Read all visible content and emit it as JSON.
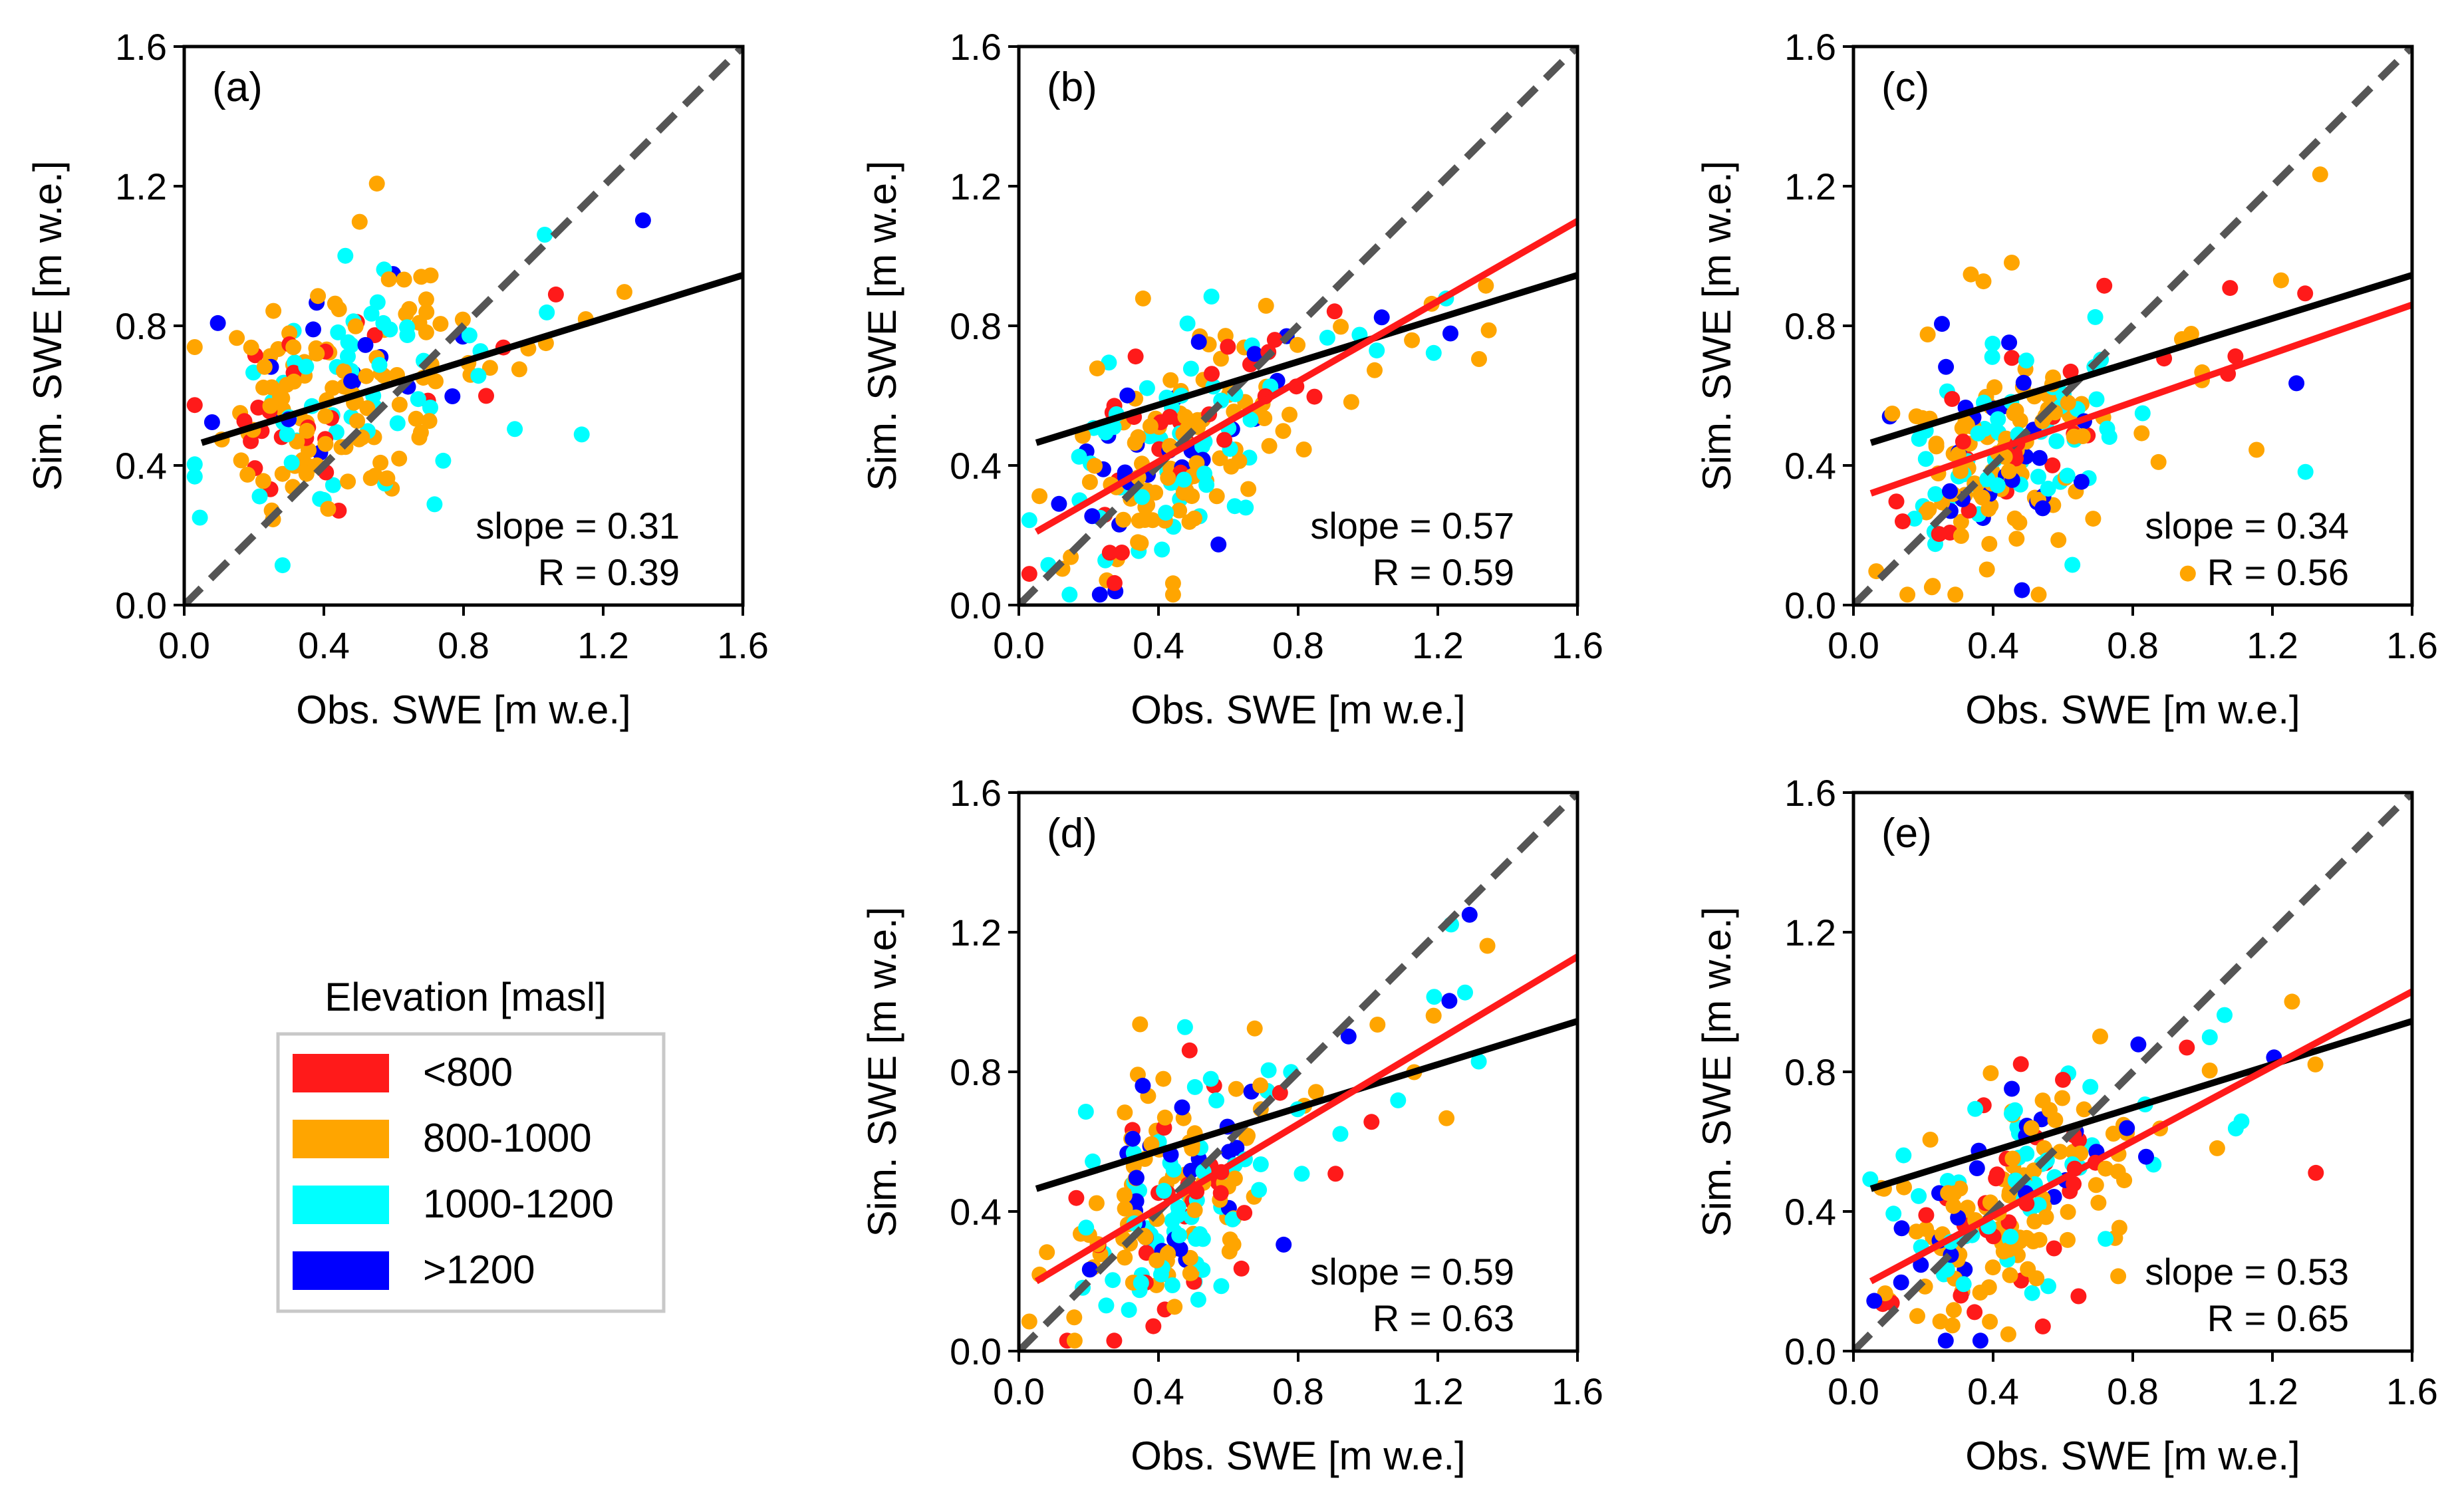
{
  "chart_data": [
    {
      "type": "scatter",
      "panel": "(a)",
      "xlabel": "Obs. SWE [m w.e.]",
      "ylabel": "Sim. SWE [m w.e.]",
      "xlim": [
        0,
        1.6
      ],
      "ylim": [
        0,
        1.6
      ],
      "ticks": [
        "0.0",
        "0.4",
        "0.8",
        "1.2",
        "1.6"
      ],
      "slope_text": "slope = 0.31",
      "r_text": "R = 0.39",
      "seed": 11,
      "lines": [
        {
          "name": "one-to-one",
          "x": [
            0,
            1.6
          ],
          "y": [
            0,
            1.6
          ],
          "color": "#555555",
          "dashed": true
        },
        {
          "name": "reference-fit",
          "x": [
            0.05,
            1.6
          ],
          "y": [
            0.465,
            0.945
          ],
          "color": "#000000",
          "dashed": false
        }
      ]
    },
    {
      "type": "scatter",
      "panel": "(b)",
      "xlabel": "Obs. SWE [m w.e.]",
      "ylabel": "Sim. SWE [m w.e.]",
      "xlim": [
        0,
        1.6
      ],
      "ylim": [
        0,
        1.6
      ],
      "ticks": [
        "0.0",
        "0.4",
        "0.8",
        "1.2",
        "1.6"
      ],
      "slope_text": "slope = 0.57",
      "r_text": "R = 0.59",
      "seed": 23,
      "lines": [
        {
          "name": "one-to-one",
          "x": [
            0,
            1.6
          ],
          "y": [
            0,
            1.6
          ],
          "color": "#555555",
          "dashed": true
        },
        {
          "name": "reference-fit",
          "x": [
            0.05,
            1.6
          ],
          "y": [
            0.465,
            0.945
          ],
          "color": "#000000",
          "dashed": false
        },
        {
          "name": "fit",
          "x": [
            0.05,
            1.6
          ],
          "y": [
            0.21,
            1.1
          ],
          "color": "#ff1a1a",
          "dashed": false
        }
      ]
    },
    {
      "type": "scatter",
      "panel": "(c)",
      "xlabel": "Obs. SWE [m w.e.]",
      "ylabel": "Sim. SWE [m w.e.]",
      "xlim": [
        0,
        1.6
      ],
      "ylim": [
        0,
        1.6
      ],
      "ticks": [
        "0.0",
        "0.4",
        "0.8",
        "1.2",
        "1.6"
      ],
      "slope_text": "slope = 0.34",
      "r_text": "R = 0.56",
      "seed": 37,
      "lines": [
        {
          "name": "one-to-one",
          "x": [
            0,
            1.6
          ],
          "y": [
            0,
            1.6
          ],
          "color": "#555555",
          "dashed": true
        },
        {
          "name": "reference-fit",
          "x": [
            0.05,
            1.6
          ],
          "y": [
            0.465,
            0.945
          ],
          "color": "#000000",
          "dashed": false
        },
        {
          "name": "fit",
          "x": [
            0.05,
            1.6
          ],
          "y": [
            0.32,
            0.86
          ],
          "color": "#ff1a1a",
          "dashed": false
        }
      ]
    },
    {
      "type": "scatter",
      "panel": "(d)",
      "xlabel": "Obs. SWE [m w.e.]",
      "ylabel": "Sim. SWE [m w.e.]",
      "xlim": [
        0,
        1.6
      ],
      "ylim": [
        0,
        1.6
      ],
      "ticks": [
        "0.0",
        "0.4",
        "0.8",
        "1.2",
        "1.6"
      ],
      "slope_text": "slope = 0.59",
      "r_text": "R = 0.63",
      "seed": 41,
      "lines": [
        {
          "name": "one-to-one",
          "x": [
            0,
            1.6
          ],
          "y": [
            0,
            1.6
          ],
          "color": "#555555",
          "dashed": true
        },
        {
          "name": "reference-fit",
          "x": [
            0.05,
            1.6
          ],
          "y": [
            0.465,
            0.945
          ],
          "color": "#000000",
          "dashed": false
        },
        {
          "name": "fit",
          "x": [
            0.05,
            1.6
          ],
          "y": [
            0.2,
            1.13
          ],
          "color": "#ff1a1a",
          "dashed": false
        }
      ]
    },
    {
      "type": "scatter",
      "panel": "(e)",
      "xlabel": "Obs. SWE [m w.e.]",
      "ylabel": "Sim. SWE [m w.e.]",
      "xlim": [
        0,
        1.6
      ],
      "ylim": [
        0,
        1.6
      ],
      "ticks": [
        "0.0",
        "0.4",
        "0.8",
        "1.2",
        "1.6"
      ],
      "slope_text": "slope = 0.53",
      "r_text": "R = 0.65",
      "seed": 53,
      "lines": [
        {
          "name": "one-to-one",
          "x": [
            0,
            1.6
          ],
          "y": [
            0,
            1.6
          ],
          "color": "#555555",
          "dashed": true
        },
        {
          "name": "reference-fit",
          "x": [
            0.05,
            1.6
          ],
          "y": [
            0.465,
            0.945
          ],
          "color": "#000000",
          "dashed": false
        },
        {
          "name": "fit",
          "x": [
            0.05,
            1.6
          ],
          "y": [
            0.2,
            1.03
          ],
          "color": "#ff1a1a",
          "dashed": false
        }
      ]
    }
  ],
  "legend": {
    "title": "Elevation [masl]",
    "items": [
      {
        "label": "<800",
        "color": "#ff1a1a"
      },
      {
        "label": "800-1000",
        "color": "#ffa500"
      },
      {
        "label": "1000-1200",
        "color": "#00ffff"
      },
      {
        "label": ">1200",
        "color": "#0000ff"
      }
    ]
  }
}
